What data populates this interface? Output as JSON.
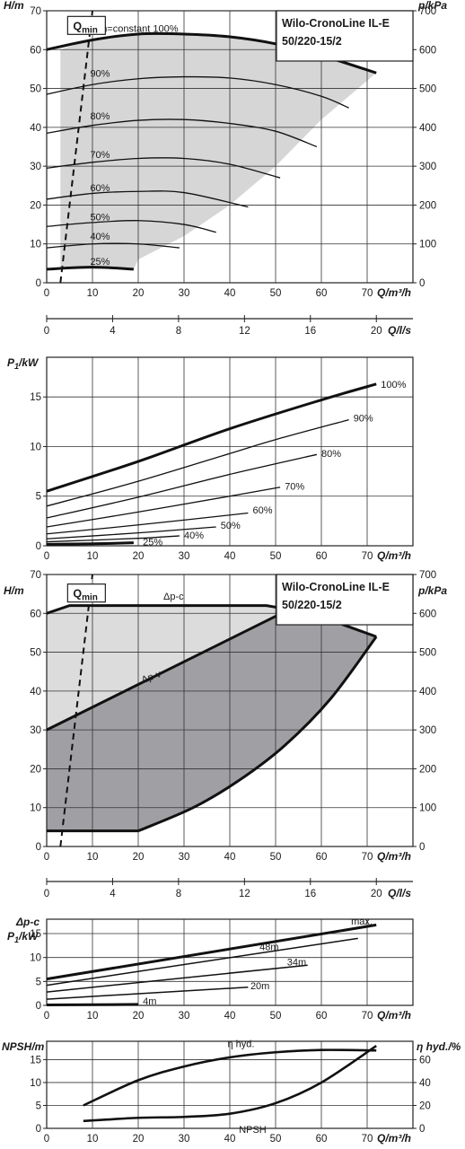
{
  "chart_data": [
    {
      "type": "line",
      "title": [
        "Wilo-CronoLine IL-E",
        "50/220-15/2"
      ],
      "xlabel": "Q/m³/h",
      "ylabel": "H/m",
      "y2label": "p/kPa",
      "qmin_label": "Q",
      "qmin_sub": "min",
      "x_ticks": [
        "0",
        "10",
        "20",
        "30",
        "40",
        "50",
        "60",
        "70"
      ],
      "y_ticks": [
        "0",
        "10",
        "20",
        "30",
        "40",
        "50",
        "60",
        "70"
      ],
      "y2_ticks": [
        "0",
        "100",
        "200",
        "300",
        "400",
        "500",
        "600",
        "700"
      ],
      "xlim": [
        0,
        80
      ],
      "ylim": [
        0,
        70
      ],
      "series": [
        {
          "name": "n=constant 100%",
          "bold": true,
          "x": [
            0,
            10,
            20,
            30,
            40,
            50,
            60,
            72
          ],
          "y": [
            60,
            62.5,
            64,
            64,
            63.3,
            61.5,
            58.5,
            54
          ]
        },
        {
          "name": "90%",
          "x": [
            0,
            10,
            20,
            30,
            40,
            50,
            60,
            66
          ],
          "y": [
            48.5,
            51,
            52.5,
            53,
            52.7,
            51,
            48,
            45
          ]
        },
        {
          "name": "80%",
          "x": [
            0,
            10,
            20,
            30,
            40,
            50,
            59
          ],
          "y": [
            38.5,
            40.5,
            41.8,
            42,
            41,
            39,
            35
          ]
        },
        {
          "name": "70%",
          "x": [
            0,
            10,
            20,
            30,
            40,
            51
          ],
          "y": [
            29.5,
            31,
            32,
            32,
            30.5,
            27
          ]
        },
        {
          "name": "60%",
          "x": [
            0,
            10,
            20,
            30,
            44
          ],
          "y": [
            21.5,
            23,
            23.5,
            23.2,
            19.5
          ]
        },
        {
          "name": "50%",
          "x": [
            0,
            10,
            20,
            30,
            37
          ],
          "y": [
            14.5,
            15.5,
            16,
            15,
            13
          ]
        },
        {
          "name": "40%",
          "x": [
            0,
            10,
            20,
            29
          ],
          "y": [
            9,
            10,
            10,
            9
          ]
        },
        {
          "name": "25%",
          "bold": true,
          "x": [
            0,
            10,
            19
          ],
          "y": [
            3.5,
            4,
            3.5
          ]
        }
      ],
      "qmin_line": {
        "x": [
          3,
          10
        ],
        "y": [
          0,
          70
        ]
      },
      "shaded_area": {
        "x": [
          3,
          10,
          20,
          30,
          40,
          50,
          60,
          72,
          72,
          60,
          50,
          40,
          30,
          20,
          19,
          10,
          3
        ],
        "y": [
          60,
          62.5,
          64,
          64,
          63.3,
          61.5,
          58.5,
          54,
          54,
          42,
          30,
          20,
          12,
          6,
          3.5,
          4,
          3.5
        ]
      }
    },
    {
      "type": "axis",
      "xlabel": "Q/l/s",
      "x_ticks": [
        "0",
        "4",
        "8",
        "12",
        "16",
        "20"
      ],
      "xlim": [
        0,
        22.22
      ]
    },
    {
      "type": "line",
      "ylabel": "P",
      "ylabel_sub": "1",
      "ylabel_suffix": "/kW",
      "xlabel": "Q/m³/h",
      "x_ticks": [
        "0",
        "10",
        "20",
        "30",
        "40",
        "50",
        "60",
        "70"
      ],
      "y_ticks": [
        "0",
        "5",
        "10",
        "15"
      ],
      "xlim": [
        0,
        80
      ],
      "ylim": [
        0,
        19
      ],
      "series": [
        {
          "name": "100%",
          "bold": true,
          "x": [
            0,
            20,
            40,
            60,
            72
          ],
          "y": [
            5.5,
            8.5,
            11.8,
            14.7,
            16.3
          ]
        },
        {
          "name": "90%",
          "x": [
            0,
            20,
            40,
            50,
            66
          ],
          "y": [
            4,
            6.5,
            9.3,
            10.7,
            12.7
          ]
        },
        {
          "name": "80%",
          "x": [
            0,
            20,
            40,
            59
          ],
          "y": [
            2.8,
            4.9,
            7.2,
            9.2
          ]
        },
        {
          "name": "70%",
          "x": [
            0,
            20,
            40,
            51
          ],
          "y": [
            1.9,
            3.4,
            5,
            5.9
          ]
        },
        {
          "name": "60%",
          "x": [
            0,
            20,
            44
          ],
          "y": [
            1.2,
            2.1,
            3.3
          ]
        },
        {
          "name": "50%",
          "x": [
            0,
            20,
            37
          ],
          "y": [
            0.7,
            1.3,
            1.9
          ]
        },
        {
          "name": "40%",
          "x": [
            0,
            20,
            29
          ],
          "y": [
            0.4,
            0.75,
            1
          ]
        },
        {
          "name": "25%",
          "bold": true,
          "x": [
            0,
            10,
            19
          ],
          "y": [
            0.15,
            0.2,
            0.3
          ]
        }
      ]
    },
    {
      "type": "area",
      "title": [
        "Wilo-CronoLine IL-E",
        "50/220-15/2"
      ],
      "xlabel": "Q/m³/h",
      "ylabel": "H/m",
      "y2label": "p/kPa",
      "qmin_label": "Q",
      "qmin_sub": "min",
      "x_ticks": [
        "0",
        "10",
        "20",
        "30",
        "40",
        "50",
        "60",
        "70"
      ],
      "y_ticks": [
        "0",
        "10",
        "20",
        "30",
        "40",
        "50",
        "60",
        "70"
      ],
      "y2_ticks": [
        "0",
        "100",
        "200",
        "300",
        "400",
        "500",
        "600",
        "700"
      ],
      "xlim": [
        0,
        80
      ],
      "ylim": [
        0,
        70
      ],
      "labels": {
        "dpc": "Δp-c",
        "dpv": "Δp-v",
        "max": "max."
      },
      "light_region": {
        "x": [
          0,
          5,
          48,
          53,
          0
        ],
        "y": [
          60,
          62,
          62,
          61,
          30
        ]
      },
      "dark_region": {
        "x": [
          0,
          53,
          60,
          72,
          62,
          52,
          42,
          32,
          20,
          0
        ],
        "y": [
          30,
          61,
          59,
          54,
          38,
          26,
          17,
          10,
          4,
          4
        ]
      },
      "dpc_line": {
        "x": [
          0,
          5,
          48,
          53
        ],
        "y": [
          60,
          62,
          62,
          61
        ]
      },
      "dpv_line": {
        "x": [
          0,
          53
        ],
        "y": [
          30,
          61
        ]
      },
      "max_line": {
        "x": [
          53,
          60,
          72
        ],
        "y": [
          61,
          59,
          54
        ]
      },
      "bottom_line": {
        "x": [
          0,
          20
        ],
        "y": [
          4,
          4
        ]
      },
      "right_line": {
        "x": [
          72,
          62,
          52,
          42,
          32,
          20
        ],
        "y": [
          54,
          38,
          26,
          17,
          10,
          4
        ]
      },
      "qmin_line": {
        "x": [
          3,
          10
        ],
        "y": [
          0,
          70
        ]
      }
    },
    {
      "type": "axis",
      "xlabel": "Q/l/s",
      "x_ticks": [
        "0",
        "4",
        "8",
        "12",
        "16",
        "20"
      ],
      "xlim": [
        0,
        22.22
      ]
    },
    {
      "type": "line",
      "ylabel_top": "Δp-c",
      "ylabel": "P",
      "ylabel_sub": "1",
      "ylabel_suffix": "/kW",
      "xlabel": "Q/m³/h",
      "x_ticks": [
        "0",
        "10",
        "20",
        "30",
        "40",
        "50",
        "60",
        "70"
      ],
      "y_ticks": [
        "0",
        "5",
        "10",
        "15"
      ],
      "xlim": [
        0,
        80
      ],
      "ylim": [
        0,
        18
      ],
      "series": [
        {
          "name": "max.",
          "bold": true,
          "x": [
            0,
            72
          ],
          "y": [
            5.5,
            16.8
          ]
        },
        {
          "name": "48m",
          "x": [
            0,
            68
          ],
          "y": [
            4.2,
            14
          ]
        },
        {
          "name": "34m",
          "x": [
            0,
            57
          ],
          "y": [
            2.8,
            8.4
          ]
        },
        {
          "name": "20m",
          "x": [
            0,
            44
          ],
          "y": [
            1.3,
            3.8
          ]
        },
        {
          "name": "4m",
          "bold": true,
          "x": [
            0,
            20
          ],
          "y": [
            0.1,
            0.2
          ]
        }
      ]
    },
    {
      "type": "line",
      "ylabel": "NPSH/m",
      "y2label": "η hyd./%",
      "xlabel": "Q/m³/h",
      "x_ticks": [
        "0",
        "10",
        "20",
        "30",
        "40",
        "50",
        "60",
        "70"
      ],
      "y_ticks": [
        "0",
        "5",
        "10",
        "15"
      ],
      "y2_ticks": [
        "0",
        "20",
        "40",
        "60"
      ],
      "xlim": [
        0,
        80
      ],
      "ylim": [
        0,
        19
      ],
      "series": [
        {
          "name": "η hyd.",
          "x": [
            8,
            20,
            30,
            40,
            50,
            60,
            72
          ],
          "y": [
            5,
            10.5,
            13.5,
            15.5,
            16.6,
            17.1,
            17
          ]
        },
        {
          "name": "NPSH",
          "x": [
            8,
            20,
            30,
            40,
            50,
            60,
            72
          ],
          "y": [
            1.6,
            2.3,
            2.5,
            3.2,
            5.5,
            10,
            18
          ]
        }
      ]
    }
  ]
}
